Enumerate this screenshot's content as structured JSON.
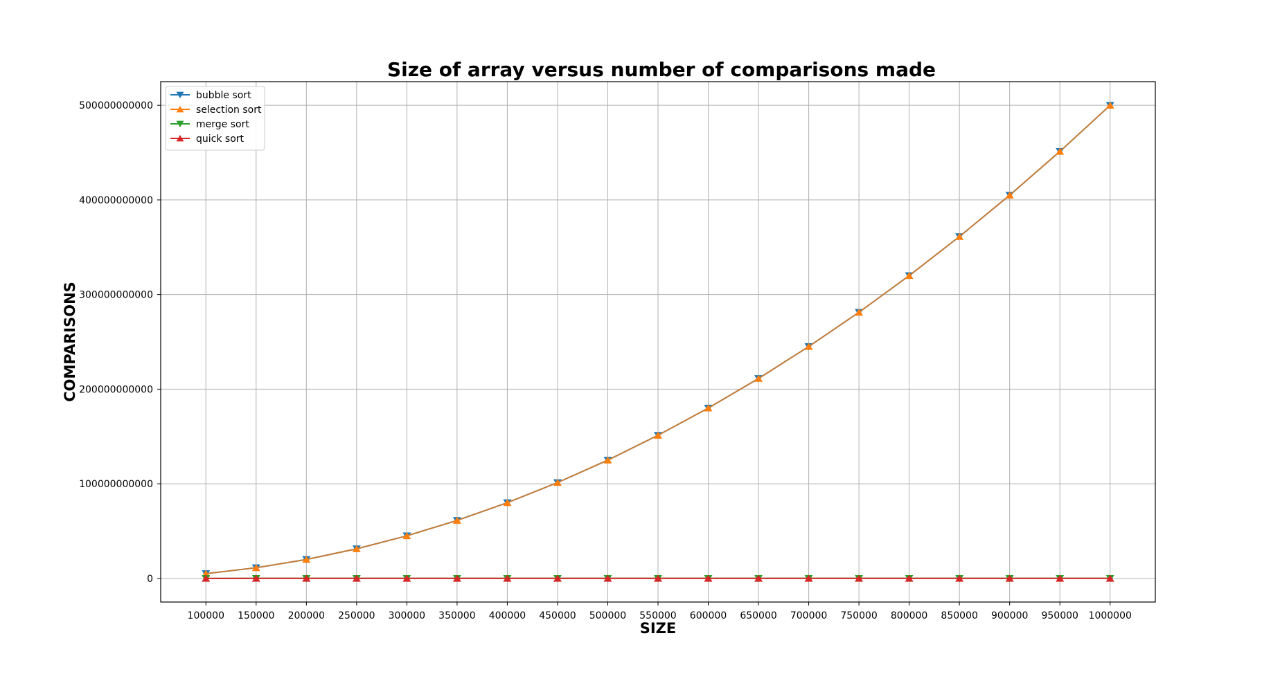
{
  "chart_data": {
    "type": "line",
    "title": "Size of array versus number of comparisons made",
    "xlabel": "SIZE",
    "ylabel": "COMPARISONS",
    "x": [
      100000,
      150000,
      200000,
      250000,
      300000,
      350000,
      400000,
      450000,
      500000,
      550000,
      600000,
      650000,
      700000,
      750000,
      800000,
      850000,
      900000,
      950000,
      1000000
    ],
    "x_tick_labels": [
      "100000",
      "150000",
      "200000",
      "250000",
      "300000",
      "350000",
      "400000",
      "450000",
      "500000",
      "550000",
      "600000",
      "650000",
      "700000",
      "750000",
      "800000",
      "850000",
      "900000",
      "950000",
      "1000000"
    ],
    "y_ticks": [
      0,
      100000000000,
      200000000000,
      300000000000,
      400000000000,
      500000000000
    ],
    "y_tick_labels": [
      "0",
      "100000000000",
      "200000000000",
      "300000000000",
      "400000000000",
      "500000000000"
    ],
    "xlim": [
      55000,
      1045000
    ],
    "ylim": [
      -25000000000,
      525000000000
    ],
    "grid": true,
    "legend_position": "top-left",
    "series": [
      {
        "name": "bubble sort",
        "color": "#1f77b4",
        "marker": "triangle-down",
        "values": [
          4999950000,
          11249925000,
          19999900000,
          31249875000,
          44999850000,
          61249825000,
          79999800000,
          101249775000,
          124999750000,
          151249725000,
          179999700000,
          211249675000,
          244999650000,
          281249625000,
          319999600000,
          361249575000,
          404999550000,
          451249525000,
          499999500000
        ]
      },
      {
        "name": "selection sort",
        "color": "#ff7f0e",
        "marker": "triangle-up",
        "values": [
          4999950000,
          11249925000,
          19999900000,
          31249875000,
          44999850000,
          61249825000,
          79999800000,
          101249775000,
          124999750000,
          151249725000,
          179999700000,
          211249675000,
          244999650000,
          281249625000,
          319999600000,
          361249575000,
          404999550000,
          451249525000,
          499999500000
        ]
      },
      {
        "name": "merge sort",
        "color": "#2ca02c",
        "marker": "triangle-down",
        "values": [
          1536000,
          2400000,
          3272000,
          4190000,
          5108000,
          6024000,
          6944000,
          7890000,
          8836000,
          9780000,
          10730000,
          11680000,
          12620000,
          13580000,
          14540000,
          15500000,
          16460000,
          17420000,
          18380000
        ]
      },
      {
        "name": "quick sort",
        "color": "#d62728",
        "marker": "triangle-up",
        "values": [
          1900000,
          3000000,
          4100000,
          5200000,
          6400000,
          7600000,
          8800000,
          10000000,
          11200000,
          12400000,
          13600000,
          14900000,
          16200000,
          17400000,
          18700000,
          20000000,
          21300000,
          22600000,
          23900000
        ]
      }
    ]
  }
}
